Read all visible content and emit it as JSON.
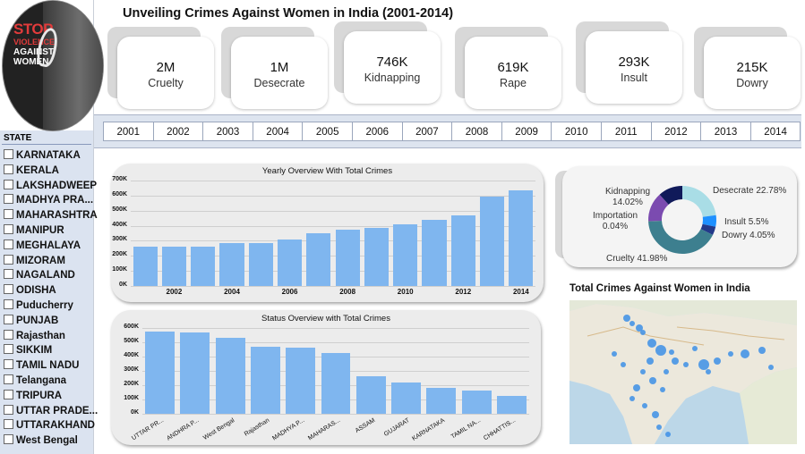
{
  "title": "Unveiling Crimes Against Women in India (2001-2014)",
  "logo": {
    "line1": "STOP",
    "line2": "VIOLENCE",
    "line3": "AGAINST WOMEN"
  },
  "kpis": [
    {
      "value": "2M",
      "label": "Cruelty"
    },
    {
      "value": "1M",
      "label": "Desecrate"
    },
    {
      "value": "746K",
      "label": "Kidnapping"
    },
    {
      "value": "619K",
      "label": "Rape"
    },
    {
      "value": "293K",
      "label": "Insult"
    },
    {
      "value": "215K",
      "label": "Dowry"
    }
  ],
  "state_slicer": {
    "title": "STATE",
    "items": [
      "KARNATAKA",
      "KERALA",
      "LAKSHADWEEP",
      "MADHYA PRA...",
      "MAHARASHTRA",
      "MANIPUR",
      "MEGHALAYA",
      "MIZORAM",
      "NAGALAND",
      "ODISHA",
      "Puducherry",
      "PUNJAB",
      "Rajasthan",
      "SIKKIM",
      "TAMIL NADU",
      "Telangana",
      "TRIPURA",
      "UTTAR PRADE...",
      "UTTARAKHAND",
      "West Bengal"
    ]
  },
  "years": [
    "2001",
    "2002",
    "2003",
    "2004",
    "2005",
    "2006",
    "2007",
    "2008",
    "2009",
    "2010",
    "2011",
    "2012",
    "2013",
    "2014"
  ],
  "chart_data": [
    {
      "type": "bar",
      "title": "Yearly Overview With Total Crimes",
      "categories": [
        "2001",
        "2002",
        "2003",
        "2004",
        "2005",
        "2006",
        "2007",
        "2008",
        "2009",
        "2010",
        "2011",
        "2012",
        "2013",
        "2014"
      ],
      "tick_labels_x": [
        "2002",
        "2004",
        "2006",
        "2008",
        "2010",
        "2012",
        "2014"
      ],
      "values": [
        260000,
        262000,
        263000,
        285000,
        284000,
        307000,
        348000,
        371000,
        388000,
        408000,
        438000,
        466000,
        592000,
        634000
      ],
      "ylim": [
        0,
        700000
      ],
      "yticks": [
        "0K",
        "100K",
        "200K",
        "300K",
        "400K",
        "500K",
        "600K",
        "700K"
      ],
      "grid": true
    },
    {
      "type": "bar",
      "title": "Status Overview with Total Crimes",
      "categories": [
        "UTTAR PR...",
        "ANDHRA P...",
        "West Bengal",
        "Rajasthan",
        "MADHYA P...",
        "MAHARAS...",
        "ASSAM",
        "GUJARAT",
        "KARNATAKA",
        "TAMIL NA...",
        "CHHATTIS..."
      ],
      "values": [
        578000,
        570000,
        532000,
        468000,
        464000,
        427000,
        261000,
        221000,
        180000,
        165000,
        122000
      ],
      "ylim": [
        0,
        600000
      ],
      "yticks": [
        "0K",
        "100K",
        "200K",
        "300K",
        "400K",
        "500K",
        "600K"
      ],
      "grid": true
    },
    {
      "type": "pie",
      "donut": true,
      "slices": [
        {
          "name": "Cruelty",
          "value": 41.98,
          "label": "41.98%",
          "color": "#3d7f8f"
        },
        {
          "name": "Desecrate",
          "value": 22.78,
          "label": "22.78%",
          "color": "#a9dde6"
        },
        {
          "name": "Insult",
          "value": 5.5,
          "label": "5.5%",
          "color": "#1e90ff"
        },
        {
          "name": "Dowry",
          "value": 4.05,
          "label": "4.05%",
          "color": "#233a8a"
        },
        {
          "name": "Kidnapping",
          "value": 14.02,
          "label": "14.02%",
          "color": "#7b4bb0"
        },
        {
          "name": "Importation",
          "value": 0.04,
          "label": "0.04%",
          "color": "#f2c80f"
        },
        {
          "name": "Rape",
          "value": 11.63,
          "label": "",
          "color": "#101a5a"
        }
      ]
    }
  ],
  "map": {
    "title": "Total Crimes Against Women in India"
  }
}
